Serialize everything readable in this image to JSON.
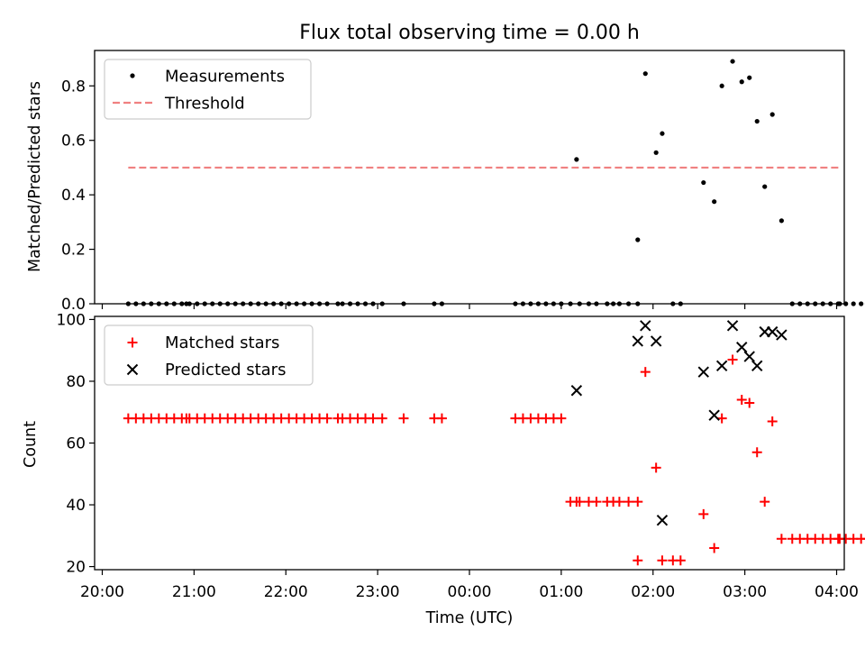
{
  "title": "Flux total observing time = 0.00 h",
  "chart_data": [
    {
      "type": "scatter",
      "ylabel": "Matched/Predicted stars",
      "ylim": [
        0,
        0.93
      ],
      "yticks": [
        "0.0",
        "0.2",
        "0.4",
        "0.6",
        "0.8"
      ],
      "legend_placement": "upper-left",
      "legend": [
        "Measurements",
        "Threshold"
      ],
      "threshold": {
        "name": "Threshold",
        "value": 0.5,
        "x_start": "20:17",
        "x_end": "04:02",
        "color": "#f08080"
      },
      "series": [
        {
          "name": "Measurements",
          "color": "#000000",
          "points": [
            [
              "20:17",
              0
            ],
            [
              "20:22",
              0
            ],
            [
              "20:27",
              0
            ],
            [
              "20:32",
              0
            ],
            [
              "20:37",
              0
            ],
            [
              "20:42",
              0
            ],
            [
              "20:47",
              0
            ],
            [
              "20:52",
              0
            ],
            [
              "20:55",
              0
            ],
            [
              "20:57",
              0
            ],
            [
              "21:02",
              0
            ],
            [
              "21:07",
              0
            ],
            [
              "21:12",
              0
            ],
            [
              "21:17",
              0
            ],
            [
              "21:22",
              0
            ],
            [
              "21:27",
              0
            ],
            [
              "21:32",
              0
            ],
            [
              "21:37",
              0
            ],
            [
              "21:42",
              0
            ],
            [
              "21:47",
              0
            ],
            [
              "21:52",
              0
            ],
            [
              "21:57",
              0
            ],
            [
              "22:02",
              0
            ],
            [
              "22:07",
              0
            ],
            [
              "22:12",
              0
            ],
            [
              "22:17",
              0
            ],
            [
              "22:22",
              0
            ],
            [
              "22:27",
              0
            ],
            [
              "22:34",
              0
            ],
            [
              "22:37",
              0
            ],
            [
              "22:42",
              0
            ],
            [
              "22:47",
              0
            ],
            [
              "22:52",
              0
            ],
            [
              "22:57",
              0
            ],
            [
              "23:03",
              0
            ],
            [
              "23:17",
              0
            ],
            [
              "23:37",
              0
            ],
            [
              "23:42",
              0
            ],
            [
              "00:30",
              0
            ],
            [
              "00:35",
              0
            ],
            [
              "00:40",
              0
            ],
            [
              "00:45",
              0
            ],
            [
              "00:50",
              0
            ],
            [
              "00:55",
              0
            ],
            [
              "01:00",
              0
            ],
            [
              "01:06",
              0
            ],
            [
              "01:12",
              0
            ],
            [
              "01:18",
              0
            ],
            [
              "01:23",
              0
            ],
            [
              "01:30",
              0
            ],
            [
              "01:34",
              0
            ],
            [
              "01:38",
              0
            ],
            [
              "01:44",
              0
            ],
            [
              "01:50",
              0
            ],
            [
              "01:10",
              0.53
            ],
            [
              "01:50",
              0.235
            ],
            [
              "01:55",
              0.845
            ],
            [
              "02:02",
              0.555
            ],
            [
              "02:06",
              0.625
            ],
            [
              "02:13",
              0
            ],
            [
              "02:18",
              0
            ],
            [
              "02:33",
              0.445
            ],
            [
              "02:40",
              0.375
            ],
            [
              "02:45",
              0.8
            ],
            [
              "02:52",
              0.89
            ],
            [
              "02:58",
              0.815
            ],
            [
              "03:03",
              0.83
            ],
            [
              "03:08",
              0.67
            ],
            [
              "03:13",
              0.43
            ],
            [
              "03:18",
              0.695
            ],
            [
              "03:24",
              0.305
            ],
            [
              "03:31",
              0
            ],
            [
              "03:36",
              0
            ],
            [
              "03:41",
              0
            ],
            [
              "03:46",
              0
            ],
            [
              "03:51",
              0
            ],
            [
              "03:56",
              0
            ],
            [
              "04:01",
              0
            ],
            [
              "04:06",
              0
            ],
            [
              "04:11",
              0
            ],
            [
              "04:16",
              0
            ],
            [
              "04:20",
              0
            ],
            [
              "04:02",
              0
            ]
          ]
        }
      ]
    },
    {
      "type": "scatter",
      "xlabel": "Time (UTC)",
      "ylabel": "Count",
      "ylim": [
        19,
        101
      ],
      "yticks": [
        "20",
        "40",
        "60",
        "80",
        "100"
      ],
      "xticks": [
        "20:00",
        "21:00",
        "22:00",
        "23:00",
        "00:00",
        "01:00",
        "02:00",
        "03:00",
        "04:00"
      ],
      "legend_placement": "upper-left",
      "legend": [
        "Matched stars",
        "Predicted stars"
      ],
      "series": [
        {
          "name": "Matched stars",
          "marker": "plus",
          "color": "#ff0000",
          "points": [
            [
              "20:17",
              68
            ],
            [
              "20:22",
              68
            ],
            [
              "20:27",
              68
            ],
            [
              "20:32",
              68
            ],
            [
              "20:37",
              68
            ],
            [
              "20:42",
              68
            ],
            [
              "20:47",
              68
            ],
            [
              "20:52",
              68
            ],
            [
              "20:55",
              68
            ],
            [
              "20:57",
              68
            ],
            [
              "21:02",
              68
            ],
            [
              "21:07",
              68
            ],
            [
              "21:12",
              68
            ],
            [
              "21:17",
              68
            ],
            [
              "21:22",
              68
            ],
            [
              "21:27",
              68
            ],
            [
              "21:32",
              68
            ],
            [
              "21:37",
              68
            ],
            [
              "21:42",
              68
            ],
            [
              "21:47",
              68
            ],
            [
              "21:52",
              68
            ],
            [
              "21:57",
              68
            ],
            [
              "22:02",
              68
            ],
            [
              "22:07",
              68
            ],
            [
              "22:12",
              68
            ],
            [
              "22:17",
              68
            ],
            [
              "22:22",
              68
            ],
            [
              "22:27",
              68
            ],
            [
              "22:34",
              68
            ],
            [
              "22:37",
              68
            ],
            [
              "22:42",
              68
            ],
            [
              "22:47",
              68
            ],
            [
              "22:52",
              68
            ],
            [
              "22:57",
              68
            ],
            [
              "23:03",
              68
            ],
            [
              "23:17",
              68
            ],
            [
              "23:37",
              68
            ],
            [
              "23:42",
              68
            ],
            [
              "00:30",
              68
            ],
            [
              "00:35",
              68
            ],
            [
              "00:40",
              68
            ],
            [
              "00:45",
              68
            ],
            [
              "00:50",
              68
            ],
            [
              "00:55",
              68
            ],
            [
              "01:00",
              68
            ],
            [
              "01:06",
              41
            ],
            [
              "01:12",
              41
            ],
            [
              "01:18",
              41
            ],
            [
              "01:23",
              41
            ],
            [
              "01:30",
              41
            ],
            [
              "01:34",
              41
            ],
            [
              "01:38",
              41
            ],
            [
              "01:44",
              41
            ],
            [
              "01:50",
              41
            ],
            [
              "01:10",
              41
            ],
            [
              "01:50",
              22
            ],
            [
              "01:55",
              83
            ],
            [
              "02:02",
              52
            ],
            [
              "02:06",
              22
            ],
            [
              "02:13",
              22
            ],
            [
              "02:18",
              22
            ],
            [
              "02:33",
              37
            ],
            [
              "02:40",
              26
            ],
            [
              "02:45",
              68
            ],
            [
              "02:52",
              87
            ],
            [
              "02:58",
              74
            ],
            [
              "03:03",
              73
            ],
            [
              "03:08",
              57
            ],
            [
              "03:13",
              41
            ],
            [
              "03:18",
              67
            ],
            [
              "03:24",
              29
            ],
            [
              "03:31",
              29
            ],
            [
              "03:36",
              29
            ],
            [
              "03:41",
              29
            ],
            [
              "03:46",
              29
            ],
            [
              "03:51",
              29
            ],
            [
              "03:56",
              29
            ],
            [
              "04:01",
              29
            ],
            [
              "04:06",
              29
            ],
            [
              "04:11",
              29
            ],
            [
              "04:16",
              29
            ],
            [
              "04:20",
              29
            ],
            [
              "04:02",
              29
            ]
          ]
        },
        {
          "name": "Predicted stars",
          "marker": "x",
          "color": "#000000",
          "points": [
            [
              "01:10",
              77
            ],
            [
              "01:50",
              93
            ],
            [
              "01:55",
              98
            ],
            [
              "02:02",
              93
            ],
            [
              "02:06",
              35
            ],
            [
              "02:33",
              83
            ],
            [
              "02:40",
              69
            ],
            [
              "02:45",
              85
            ],
            [
              "02:52",
              98
            ],
            [
              "02:58",
              91
            ],
            [
              "03:03",
              88
            ],
            [
              "03:08",
              85
            ],
            [
              "03:13",
              96
            ],
            [
              "03:18",
              96
            ],
            [
              "03:24",
              95
            ]
          ]
        }
      ]
    }
  ]
}
